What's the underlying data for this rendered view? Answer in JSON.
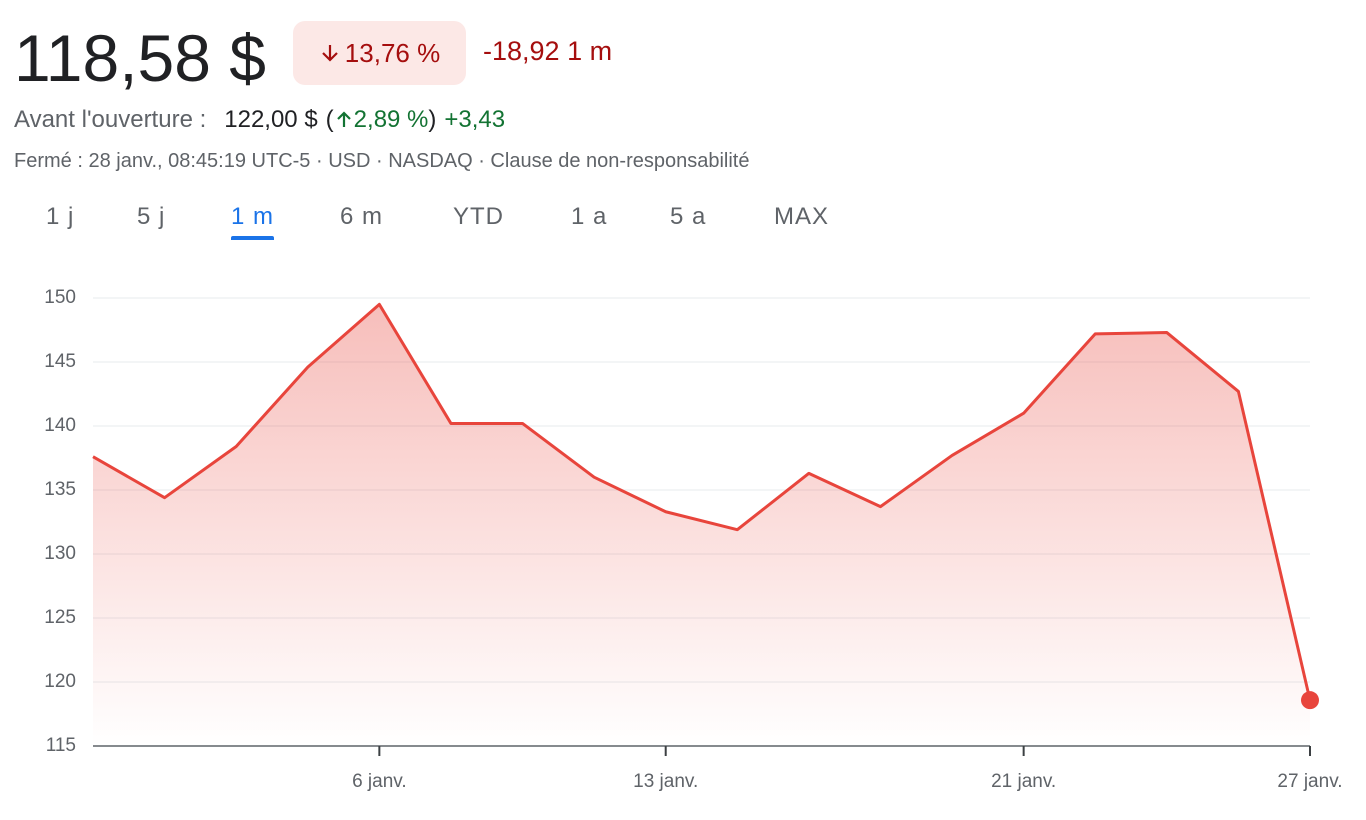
{
  "header": {
    "price": "118,58 $",
    "change_pct": "13,76 %",
    "change_abs": "-18,92",
    "period": "1 m",
    "premarket_label": "Avant l'ouverture :",
    "premarket_price": "122,00 $",
    "premarket_open": "(",
    "premarket_pct": "2,89 %",
    "premarket_close": ")",
    "premarket_abs": "+3,43",
    "status": "Fermé : 28 janv., 08:45:19 UTC-5 · USD · NASDAQ · Clause de non-responsabilité"
  },
  "tabs": {
    "labels": [
      "1 j",
      "5 j",
      "1 m",
      "6 m",
      "YTD",
      "1 a",
      "5 a",
      "MAX"
    ],
    "active": 2
  },
  "chart_data": {
    "type": "line",
    "categories": [
      null,
      null,
      null,
      null,
      "6 janv.",
      null,
      null,
      null,
      "13 janv.",
      null,
      null,
      null,
      null,
      "21 janv.",
      null,
      null,
      null,
      "27 janv."
    ],
    "values": [
      137.6,
      134.4,
      138.4,
      144.6,
      149.5,
      140.2,
      140.2,
      136.0,
      133.3,
      131.9,
      136.3,
      133.7,
      137.7,
      141.0,
      147.2,
      147.3,
      142.7,
      118.58
    ],
    "color": "#e8453c",
    "ylim": [
      115,
      150
    ],
    "yticks": [
      115,
      120,
      125,
      130,
      135,
      140,
      145,
      150
    ],
    "grid": true
  }
}
